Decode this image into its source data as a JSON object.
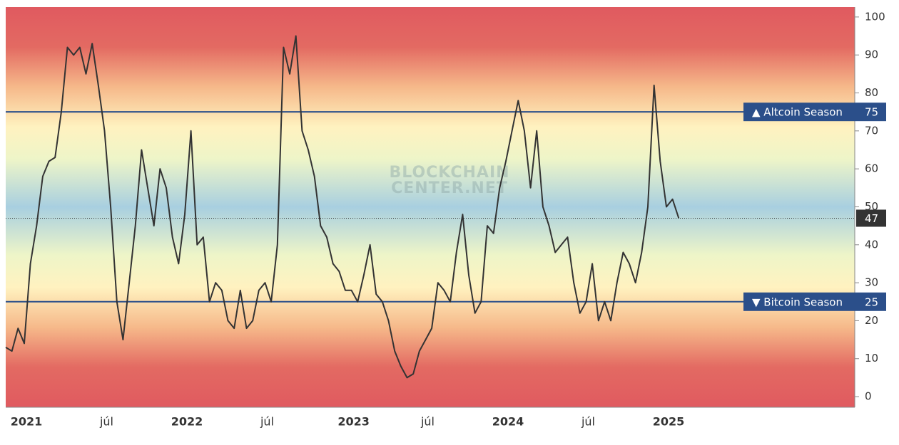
{
  "chart_data": {
    "type": "line",
    "watermark": [
      "BLOCKCHAIN",
      "CENTER.NET"
    ],
    "categories": [
      null,
      null,
      null,
      "2021",
      null,
      null,
      null,
      null,
      null,
      null,
      null,
      null,
      null,
      null,
      null,
      null,
      "júl",
      null,
      null,
      null,
      null,
      null,
      null,
      null,
      null,
      null,
      null,
      null,
      null,
      "2022",
      null,
      null,
      null,
      null,
      null,
      null,
      null,
      null,
      null,
      null,
      null,
      null,
      "júl",
      null,
      null,
      null,
      null,
      null,
      null,
      null,
      null,
      null,
      null,
      null,
      null,
      null,
      "2023",
      null,
      null,
      null,
      null,
      null,
      null,
      null,
      null,
      null,
      null,
      null,
      "júl",
      null,
      null,
      null,
      null,
      null,
      null,
      null,
      null,
      null,
      null,
      null,
      null,
      "2024",
      null,
      null,
      null,
      null,
      null,
      null,
      null,
      null,
      null,
      null,
      null,
      null,
      "júl",
      null,
      null,
      null,
      null,
      null,
      null,
      null,
      null,
      null,
      null,
      null,
      null,
      "2025",
      null,
      null
    ],
    "values": [
      13,
      12,
      18,
      14,
      35,
      45,
      58,
      62,
      63,
      75,
      92,
      90,
      92,
      85,
      93,
      82,
      70,
      50,
      25,
      15,
      30,
      45,
      65,
      55,
      45,
      60,
      55,
      42,
      35,
      48,
      70,
      40,
      42,
      25,
      30,
      28,
      20,
      18,
      28,
      18,
      20,
      28,
      30,
      25,
      40,
      92,
      85,
      95,
      70,
      65,
      58,
      45,
      42,
      35,
      33,
      28,
      28,
      25,
      32,
      40,
      27,
      25,
      20,
      12,
      8,
      5,
      6,
      12,
      15,
      18,
      30,
      28,
      25,
      38,
      48,
      32,
      22,
      25,
      45,
      43,
      55,
      62,
      70,
      78,
      70,
      55,
      70,
      50,
      45,
      38,
      40,
      42,
      30,
      22,
      25,
      35,
      20,
      25,
      20,
      30,
      38,
      35,
      30,
      38,
      50,
      82,
      62,
      50,
      52,
      47
    ],
    "color": "#333333",
    "ylim": [
      -2.8,
      102.6
    ],
    "yticks": [
      0,
      10,
      20,
      30,
      40,
      50,
      60,
      70,
      80,
      90,
      100
    ],
    "annotations": [
      {
        "label": "▲ Altcoin Season",
        "value": 75
      },
      {
        "label": "▼ Bitcoin Season",
        "value": 25
      }
    ]
  }
}
